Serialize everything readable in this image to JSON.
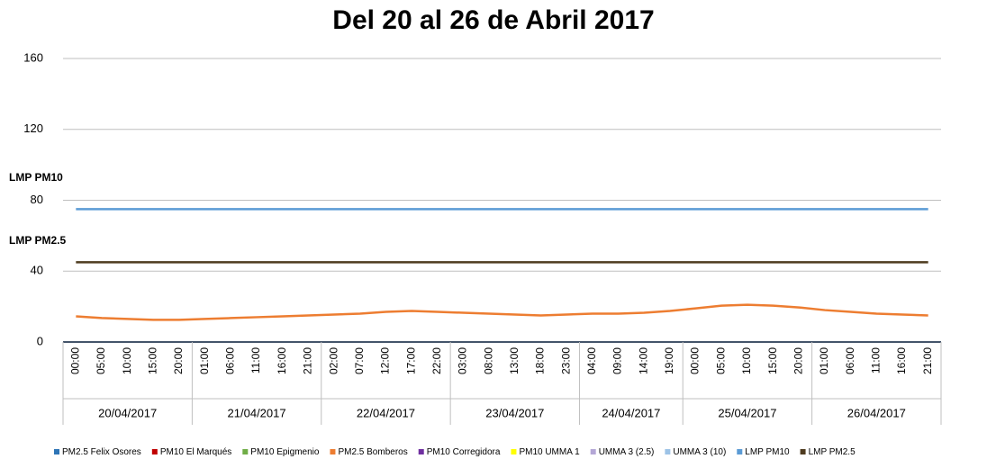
{
  "chart_data": {
    "type": "line",
    "title": "Del 20 al 26 de Abril 2017",
    "annotations": [
      "LMP PM10",
      "LMP PM2.5"
    ],
    "categories": [
      "00:00",
      "05:00",
      "10:00",
      "15:00",
      "20:00",
      "01:00",
      "06:00",
      "11:00",
      "16:00",
      "21:00",
      "02:00",
      "07:00",
      "12:00",
      "17:00",
      "22:00",
      "03:00",
      "08:00",
      "13:00",
      "18:00",
      "23:00",
      "04:00",
      "09:00",
      "14:00",
      "19:00",
      "00:00",
      "05:00",
      "10:00",
      "15:00",
      "20:00",
      "01:00",
      "06:00",
      "11:00",
      "16:00",
      "21:00"
    ],
    "x_groups": [
      "20/04/2017",
      null,
      null,
      null,
      null,
      "21/04/2017",
      null,
      null,
      null,
      null,
      "22/04/2017",
      null,
      null,
      null,
      null,
      "23/04/2017",
      null,
      null,
      null,
      null,
      "24/04/2017",
      null,
      null,
      null,
      "25/04/2017",
      null,
      null,
      null,
      null,
      "26/04/2017",
      null,
      null,
      null,
      null
    ],
    "ylim": [
      0,
      160
    ],
    "yticks": [
      0,
      40,
      80,
      120,
      160
    ],
    "grid": true,
    "series": [
      {
        "name": "PM2.5 Felix Osores",
        "color": "#2e75b6",
        "values": [
          null,
          null,
          null,
          null,
          null,
          null,
          null,
          null,
          null,
          null,
          null,
          null,
          null,
          null,
          null,
          null,
          null,
          null,
          null,
          null,
          null,
          null,
          null,
          null,
          null,
          null,
          null,
          null,
          null,
          null,
          null,
          null,
          null,
          null
        ]
      },
      {
        "name": "PM10 El Marqués",
        "color": "#c00000",
        "values": [
          null,
          null,
          null,
          null,
          null,
          null,
          null,
          null,
          null,
          null,
          null,
          null,
          null,
          null,
          null,
          null,
          null,
          null,
          null,
          null,
          null,
          null,
          null,
          null,
          null,
          null,
          null,
          null,
          null,
          null,
          null,
          null,
          null,
          null
        ]
      },
      {
        "name": "PM10 Epigmenio",
        "color": "#70ad47",
        "values": [
          null,
          null,
          null,
          null,
          null,
          null,
          null,
          null,
          null,
          null,
          null,
          null,
          null,
          null,
          null,
          null,
          null,
          null,
          null,
          null,
          null,
          null,
          null,
          null,
          null,
          null,
          null,
          null,
          null,
          null,
          null,
          null,
          null,
          null
        ]
      },
      {
        "name": "PM2.5 Bomberos",
        "color": "#ed7d31",
        "values": [
          14.5,
          13.5,
          13,
          12.5,
          12.5,
          13,
          13.5,
          14,
          14.5,
          15,
          15.5,
          16,
          17,
          17.5,
          17,
          16.5,
          16,
          15.5,
          15,
          15.5,
          16,
          16,
          16.5,
          17.5,
          19,
          20.5,
          21,
          20.5,
          19.5,
          18,
          17,
          16,
          15.5,
          15
        ]
      },
      {
        "name": "PM10 Corregidora",
        "color": "#7030a0",
        "values": [
          null,
          null,
          null,
          null,
          null,
          null,
          null,
          null,
          null,
          null,
          null,
          null,
          null,
          null,
          null,
          null,
          null,
          null,
          null,
          null,
          null,
          null,
          null,
          null,
          null,
          null,
          null,
          null,
          null,
          null,
          null,
          null,
          null,
          null
        ]
      },
      {
        "name": "PM10 UMMA 1",
        "color": "#ffff00",
        "values": [
          null,
          null,
          null,
          null,
          null,
          null,
          null,
          null,
          null,
          null,
          null,
          null,
          null,
          null,
          null,
          null,
          null,
          null,
          null,
          null,
          null,
          null,
          null,
          null,
          null,
          null,
          null,
          null,
          null,
          null,
          null,
          null,
          null,
          null
        ]
      },
      {
        "name": "UMMA 3 (2.5)",
        "color": "#b4a7d6",
        "values": [
          null,
          null,
          null,
          null,
          null,
          null,
          null,
          null,
          null,
          null,
          null,
          null,
          null,
          null,
          null,
          null,
          null,
          null,
          null,
          null,
          null,
          null,
          null,
          null,
          null,
          null,
          null,
          null,
          null,
          null,
          null,
          null,
          null,
          null
        ]
      },
      {
        "name": "UMMA 3 (10)",
        "color": "#9dc3e6",
        "values": [
          null,
          null,
          null,
          null,
          null,
          null,
          null,
          null,
          null,
          null,
          null,
          null,
          null,
          null,
          null,
          null,
          null,
          null,
          null,
          null,
          null,
          null,
          null,
          null,
          null,
          null,
          null,
          null,
          null,
          null,
          null,
          null,
          null,
          null
        ]
      },
      {
        "name": "LMP PM10",
        "color": "#5b9bd5",
        "values": [
          75,
          75,
          75,
          75,
          75,
          75,
          75,
          75,
          75,
          75,
          75,
          75,
          75,
          75,
          75,
          75,
          75,
          75,
          75,
          75,
          75,
          75,
          75,
          75,
          75,
          75,
          75,
          75,
          75,
          75,
          75,
          75,
          75,
          75
        ]
      },
      {
        "name": "LMP PM2.5",
        "color": "#4e3b1f",
        "values": [
          45,
          45,
          45,
          45,
          45,
          45,
          45,
          45,
          45,
          45,
          45,
          45,
          45,
          45,
          45,
          45,
          45,
          45,
          45,
          45,
          45,
          45,
          45,
          45,
          45,
          45,
          45,
          45,
          45,
          45,
          45,
          45,
          45,
          45
        ]
      }
    ]
  }
}
